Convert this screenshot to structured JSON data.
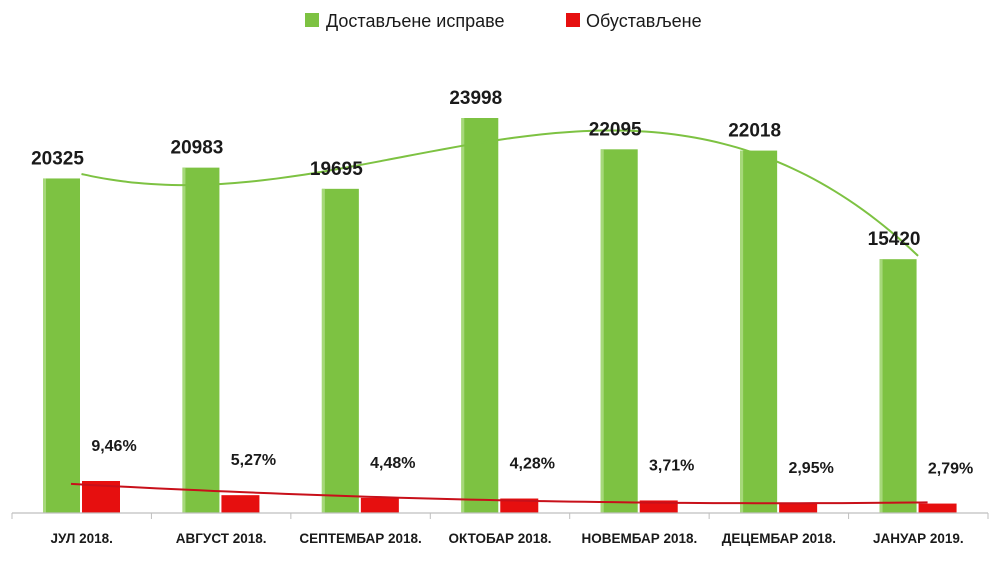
{
  "chart_data": {
    "type": "bar",
    "categories": [
      "ЈУЛ 2018.",
      "АВГУСТ 2018.",
      "СЕПТЕМБАР 2018.",
      "ОКТОБАР 2018.",
      "НОВЕМБАР 2018.",
      "ДЕЦЕМБАР 2018.",
      "ЈАНУАР 2019."
    ],
    "series": [
      {
        "name": "Достављене исправе",
        "color": "#7dc242",
        "values": [
          20325,
          20983,
          19695,
          23998,
          22095,
          22018,
          15420
        ],
        "labels": [
          "20325",
          "20983",
          "19695",
          "23998",
          "22095",
          "22018",
          "15420"
        ]
      },
      {
        "name": "Обустављене",
        "color": "#e60f0f",
        "values": [
          9.46,
          5.27,
          4.48,
          4.28,
          3.71,
          2.95,
          2.79
        ],
        "labels": [
          "9,46%",
          "5,27%",
          "4,48%",
          "4,28%",
          "3,71%",
          "2,95%",
          "2,79%"
        ]
      }
    ],
    "title": "",
    "xlabel": "",
    "ylabel": "",
    "ylim": [
      0,
      25500
    ],
    "grid": false,
    "legend": "top-center",
    "trendline_color_green": "#7dc242",
    "trendline_color_red": "#c8101a"
  }
}
